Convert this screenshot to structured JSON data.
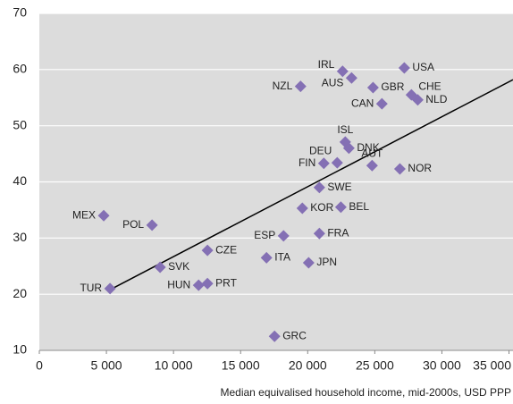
{
  "chart_data": {
    "type": "scatter",
    "x_label": "Median equivalised household income, mid-2000s, USD PPP",
    "labels": [
      "MEX",
      "POL",
      "TUR",
      "SVK",
      "HUN",
      "CZE",
      "PRT",
      "ESP",
      "ITA",
      "JPN",
      "FRA",
      "KOR",
      "BEL",
      "SWE",
      "FIN",
      "DEU",
      "ISL",
      "DNK",
      "AUT",
      "NOR",
      "NZL",
      "IRL",
      "AUS",
      "GBR",
      "CAN",
      "USA",
      "CHE",
      "NLD",
      "GRC"
    ],
    "x": [
      4800,
      8400,
      5270,
      9000,
      11870,
      12530,
      12530,
      18200,
      16930,
      20070,
      20870,
      19600,
      22470,
      20870,
      21200,
      22200,
      22800,
      23070,
      24800,
      26870,
      19470,
      22600,
      23270,
      24870,
      25530,
      27200,
      27730,
      28200,
      17530
    ],
    "values": [
      34.0,
      32.3,
      21.0,
      24.8,
      21.6,
      27.8,
      21.9,
      30.4,
      26.5,
      25.6,
      30.8,
      35.3,
      35.5,
      39.0,
      43.3,
      43.4,
      47.1,
      46.0,
      42.9,
      42.3,
      57.0,
      59.7,
      58.5,
      56.8,
      53.9,
      60.3,
      55.5,
      54.6,
      12.5
    ],
    "color": "#8470b4",
    "trend_line": {
      "x": [
        5270,
        35300
      ],
      "values": [
        20.8,
        58.2
      ],
      "color": "#000000"
    },
    "xlim": [
      0,
      35300
    ],
    "xticks": [
      0,
      {
        "value": 5000,
        "label": "5 000"
      },
      {
        "value": 10000,
        "label": "10 000"
      },
      {
        "value": 15000,
        "label": "15 000"
      },
      {
        "value": 20000,
        "label": "20 000"
      },
      {
        "value": 25000,
        "label": "25 000"
      },
      {
        "value": 30000,
        "label": "30 000"
      },
      {
        "value": 35000,
        "label": "35 000"
      }
    ],
    "ylim": [
      10,
      70
    ],
    "yticks": [
      10,
      20,
      30,
      40,
      50,
      60,
      70
    ],
    "grid": true
  }
}
